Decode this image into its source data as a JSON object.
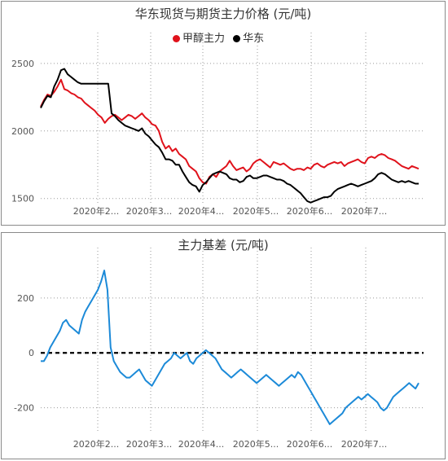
{
  "chart_data": [
    {
      "type": "line",
      "title": "华东现货与期货主力价格 (元/吨)",
      "x_tick_labels": [
        "2020年2...",
        "2020年3...",
        "2020年4...",
        "2020年5...",
        "2020年6...",
        "2020年7..."
      ],
      "y_ticks": [
        1500,
        2000,
        2500
      ],
      "ylim": [
        1450,
        2620
      ],
      "grid": true,
      "legend": "top-center",
      "series": [
        {
          "name": "甲醇主力",
          "color": "#e0121b",
          "values": [
            2180,
            2230,
            2270,
            2260,
            2290,
            2330,
            2380,
            2310,
            2300,
            2280,
            2270,
            2250,
            2240,
            2210,
            2190,
            2170,
            2150,
            2120,
            2100,
            2060,
            2090,
            2110,
            2120,
            2100,
            2080,
            2100,
            2120,
            2110,
            2090,
            2110,
            2130,
            2100,
            2080,
            2050,
            2040,
            2000,
            1920,
            1870,
            1890,
            1850,
            1870,
            1830,
            1810,
            1790,
            1740,
            1720,
            1700,
            1650,
            1620,
            1610,
            1660,
            1680,
            1660,
            1700,
            1720,
            1740,
            1780,
            1740,
            1710,
            1720,
            1730,
            1700,
            1720,
            1760,
            1780,
            1790,
            1770,
            1750,
            1730,
            1770,
            1760,
            1750,
            1760,
            1740,
            1720,
            1710,
            1720,
            1720,
            1710,
            1730,
            1720,
            1750,
            1760,
            1740,
            1730,
            1750,
            1760,
            1770,
            1760,
            1770,
            1740,
            1760,
            1770,
            1780,
            1790,
            1770,
            1760,
            1800,
            1810,
            1800,
            1820,
            1830,
            1820,
            1800,
            1790,
            1780,
            1760,
            1740,
            1730,
            1720,
            1740,
            1730,
            1720
          ]
        },
        {
          "name": "华东",
          "color": "#000000",
          "values": [
            2170,
            2220,
            2260,
            2250,
            2330,
            2380,
            2450,
            2460,
            2420,
            2400,
            2380,
            2360,
            2350,
            2350,
            2350,
            2350,
            2350,
            2350,
            2350,
            2350,
            2350,
            2130,
            2110,
            2080,
            2060,
            2040,
            2030,
            2020,
            2010,
            2000,
            2020,
            1980,
            1960,
            1930,
            1900,
            1880,
            1840,
            1790,
            1790,
            1780,
            1750,
            1750,
            1700,
            1660,
            1620,
            1600,
            1590,
            1550,
            1600,
            1620,
            1650,
            1680,
            1690,
            1700,
            1690,
            1680,
            1650,
            1640,
            1640,
            1620,
            1630,
            1660,
            1670,
            1650,
            1650,
            1660,
            1670,
            1670,
            1660,
            1650,
            1640,
            1640,
            1630,
            1610,
            1600,
            1580,
            1560,
            1540,
            1510,
            1480,
            1470,
            1480,
            1490,
            1500,
            1510,
            1510,
            1520,
            1550,
            1570,
            1580,
            1590,
            1600,
            1610,
            1600,
            1590,
            1600,
            1610,
            1620,
            1630,
            1650,
            1680,
            1690,
            1680,
            1660,
            1640,
            1630,
            1620,
            1630,
            1620,
            1630,
            1620,
            1610,
            1610
          ]
        }
      ]
    },
    {
      "type": "line",
      "title": "主力基差 (元/吨)",
      "x_tick_labels": [
        "2020年2...",
        "2020年3...",
        "2020年4...",
        "2020年5...",
        "2020年6...",
        "2020年7..."
      ],
      "y_ticks": [
        -200,
        0,
        200
      ],
      "ylim": [
        -290,
        330
      ],
      "grid": true,
      "zero_line": 0,
      "series": [
        {
          "color": "#1c8ad8",
          "values": [
            -30,
            -30,
            -10,
            20,
            40,
            60,
            80,
            110,
            120,
            100,
            90,
            80,
            70,
            120,
            150,
            170,
            190,
            210,
            230,
            260,
            300,
            230,
            20,
            -30,
            -50,
            -70,
            -80,
            -90,
            -90,
            -80,
            -70,
            -60,
            -80,
            -100,
            -110,
            -120,
            -100,
            -80,
            -60,
            -40,
            -30,
            -20,
            0,
            -10,
            -20,
            -10,
            0,
            -30,
            -40,
            -20,
            -10,
            0,
            10,
            0,
            -10,
            -20,
            -40,
            -60,
            -70,
            -80,
            -90,
            -80,
            -70,
            -60,
            -70,
            -80,
            -90,
            -100,
            -110,
            -100,
            -90,
            -80,
            -90,
            -100,
            -110,
            -120,
            -110,
            -100,
            -90,
            -80,
            -90,
            -70,
            -80,
            -100,
            -120,
            -140,
            -160,
            -180,
            -200,
            -220,
            -240,
            -260,
            -250,
            -240,
            -230,
            -220,
            -200,
            -190,
            -180,
            -170,
            -160,
            -170,
            -160,
            -150,
            -160,
            -170,
            -180,
            -200,
            -210,
            -200,
            -180,
            -160,
            -150,
            -140,
            -130,
            -120,
            -110,
            -120,
            -130,
            -110
          ]
        }
      ]
    }
  ]
}
